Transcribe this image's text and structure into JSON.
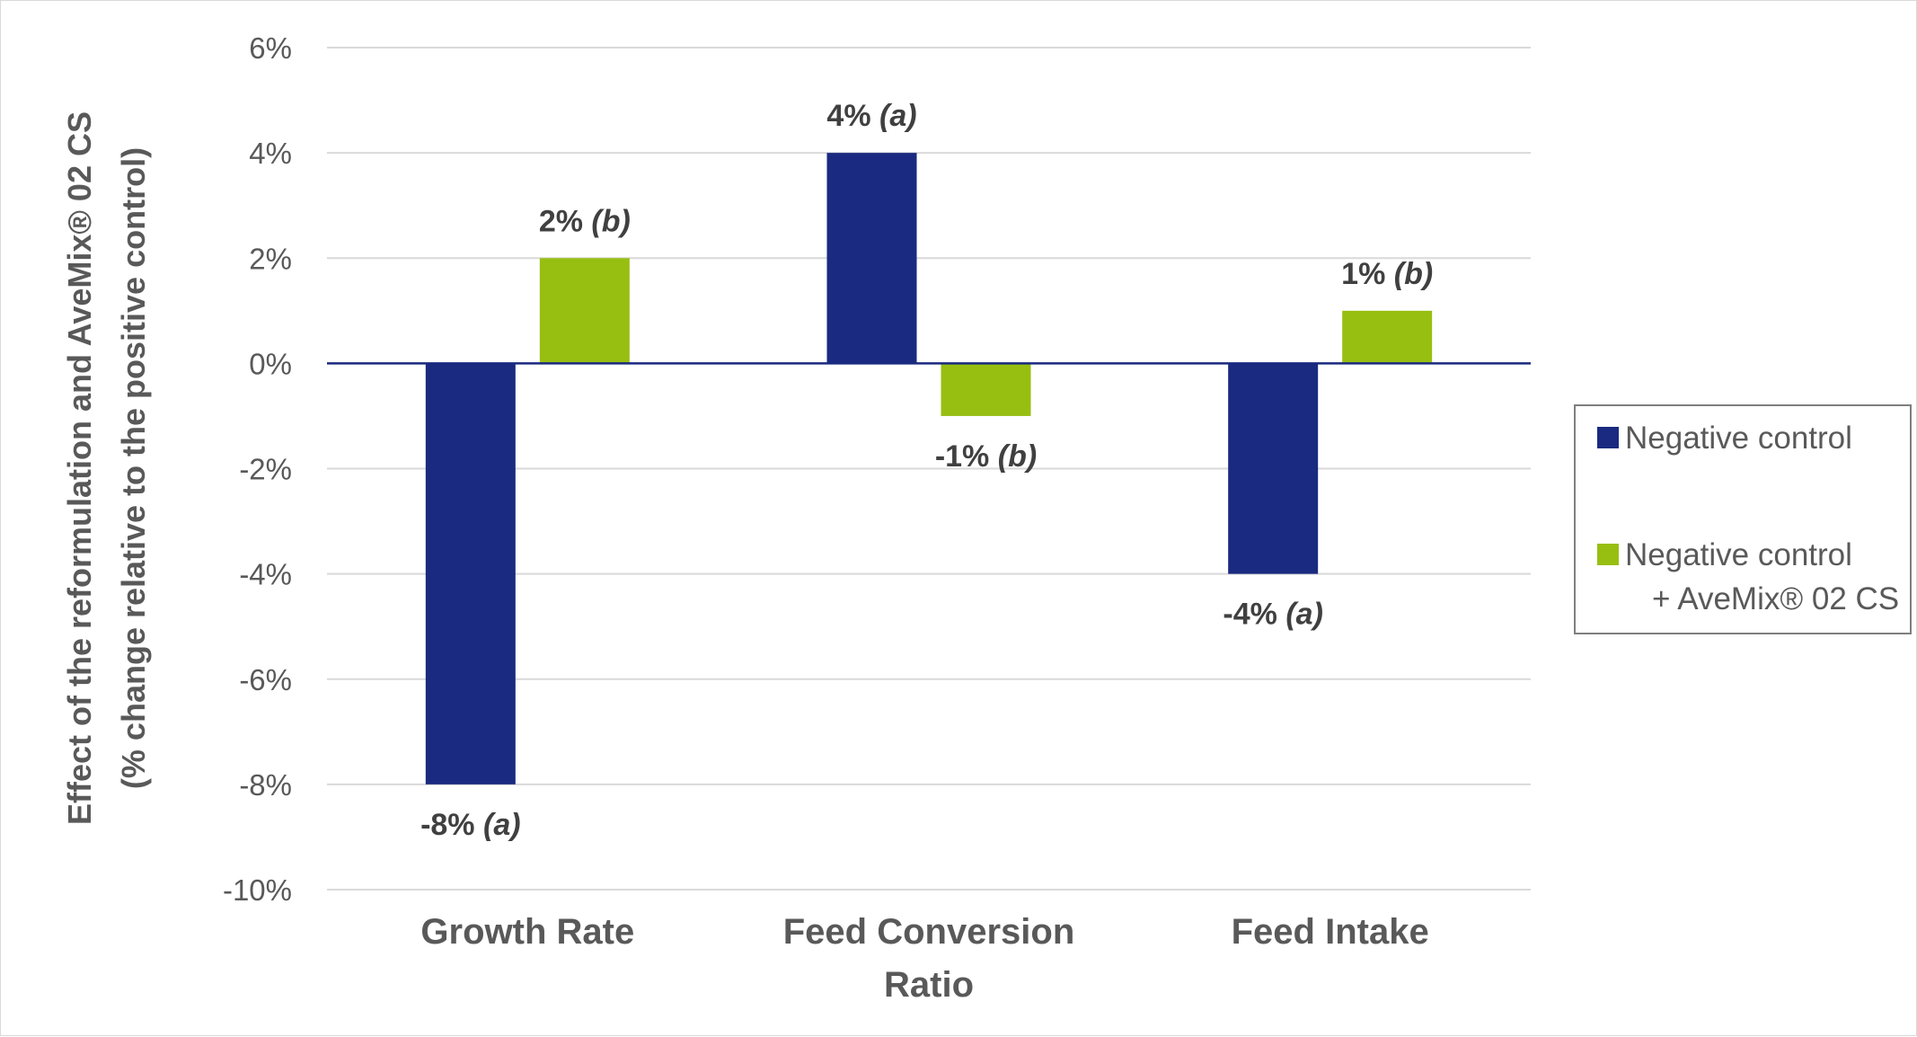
{
  "chart_data": {
    "type": "bar",
    "title": "",
    "ylabel_lines": [
      "Effect of the reformulation and AveMix® 02 CS",
      "(% change relative to the positive control)"
    ],
    "xlabel": "",
    "categories": [
      [
        "Growth Rate"
      ],
      [
        "Feed Conversion",
        "Ratio"
      ],
      [
        "Feed Intake"
      ]
    ],
    "series": [
      {
        "name": "Negative control",
        "legend_lines": [
          "Negative control"
        ],
        "color": "#1a2a80",
        "values": [
          -8,
          4,
          -4
        ],
        "labels": [
          {
            "value": "-8%",
            "sig": "(a)"
          },
          {
            "value": "4%",
            "sig": "(a)"
          },
          {
            "value": "-4%",
            "sig": "(a)"
          }
        ]
      },
      {
        "name": "Negative control + AveMix® 02 CS",
        "legend_lines": [
          "Negative control",
          "+ AveMix® 02 CS"
        ],
        "color": "#97bf12",
        "values": [
          2,
          -1,
          1
        ],
        "labels": [
          {
            "value": "2%",
            "sig": "(b)"
          },
          {
            "value": "-1%",
            "sig": "(b)"
          },
          {
            "value": "1%",
            "sig": "(b)"
          }
        ]
      }
    ],
    "yticks": [
      6,
      4,
      2,
      0,
      -2,
      -4,
      -6,
      -8,
      -10
    ],
    "ytick_labels": [
      "6%",
      "4%",
      "2%",
      "0%",
      "-2%",
      "-4%",
      "-6%",
      "-8%",
      "-10%"
    ],
    "ylim": [
      -10,
      6
    ],
    "grid": true,
    "legend_position": "right",
    "colors": {
      "gridline": "#d9d9d9",
      "zero_line": "#1a2a80",
      "legend_border": "#7f7f7f"
    }
  }
}
